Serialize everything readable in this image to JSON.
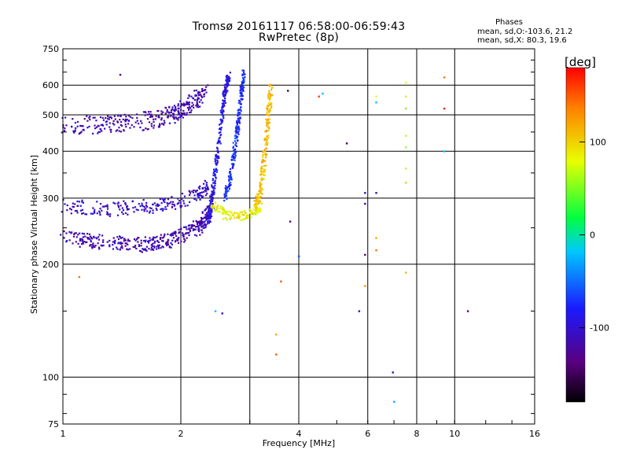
{
  "title_line1": "Tromsø 20161117 06:58:00-06:59:43",
  "title_line2": "RwPretec (8p)",
  "phase_info": {
    "heading": "Phases",
    "line_o": "mean, sd,O:-103.6, 21.2",
    "line_x": "mean, sd,X:  80.3, 19.6"
  },
  "colorbar": {
    "unit": "[deg]",
    "range": [
      -180,
      180
    ],
    "tick_labels": [
      "100",
      "0",
      "-100"
    ],
    "tick_values": [
      100,
      0,
      -100
    ]
  },
  "chart_data": {
    "type": "scatter",
    "xlabel": "Frequency [MHz]",
    "ylabel": "Stationary phase Virtual Height [km]",
    "x_scale": "log",
    "y_scale": "log",
    "xlim": [
      1,
      16
    ],
    "ylim": [
      75,
      750
    ],
    "x_tick_labels": [
      "1",
      "2",
      "4",
      "6",
      "8",
      "10",
      "16"
    ],
    "x_tick_values": [
      1,
      2,
      4,
      6,
      8,
      10,
      16
    ],
    "x_grid_values": [
      1,
      2,
      3,
      4,
      6,
      8,
      10,
      16
    ],
    "y_tick_labels": [
      "75",
      "100",
      "200",
      "300",
      "400",
      "500",
      "600",
      "750"
    ],
    "y_tick_values": [
      75,
      100,
      200,
      300,
      400,
      500,
      600,
      750
    ],
    "grid": true,
    "colorscale": "rainbow (black-purple-blue-cyan-green-yellow-red)",
    "traces": [
      {
        "name_hint": "O upper",
        "x": [
          1.0,
          1.3,
          1.6,
          1.9,
          2.1,
          2.3
        ],
        "y": [
          470,
          470,
          480,
          500,
          530,
          575
        ],
        "phase": -115,
        "spread": 0.05,
        "n": 320
      },
      {
        "name_hint": "O lower",
        "x": [
          1.0,
          1.3,
          1.6,
          1.9,
          2.2,
          2.4
        ],
        "y": [
          235,
          228,
          225,
          232,
          250,
          278
        ],
        "phase": -115,
        "spread": 0.04,
        "n": 380
      },
      {
        "name_hint": "O lower top",
        "x": [
          1.0,
          1.3,
          1.6,
          1.9,
          2.2,
          2.35
        ],
        "y": [
          285,
          280,
          285,
          290,
          305,
          320
        ],
        "phase": -105,
        "spread": 0.04,
        "n": 220
      },
      {
        "name_hint": "O cusp",
        "x": [
          2.35,
          2.42,
          2.5,
          2.58,
          2.65
        ],
        "y": [
          260,
          320,
          420,
          560,
          640
        ],
        "phase": -90,
        "spread": 0.02,
        "n": 260
      },
      {
        "name_hint": "O cusp 2",
        "x": [
          2.6,
          2.7,
          2.78,
          2.85,
          2.9
        ],
        "y": [
          300,
          360,
          450,
          560,
          650
        ],
        "phase": -75,
        "spread": 0.02,
        "n": 220
      },
      {
        "name_hint": "X lower",
        "x": [
          2.4,
          2.6,
          2.8,
          3.0,
          3.2
        ],
        "y": [
          290,
          270,
          268,
          272,
          285
        ],
        "phase": 85,
        "spread": 0.025,
        "n": 140
      },
      {
        "name_hint": "X rise",
        "x": [
          3.1,
          3.2,
          3.28,
          3.35,
          3.4
        ],
        "y": [
          285,
          320,
          400,
          500,
          600
        ],
        "phase": 110,
        "spread": 0.025,
        "n": 200
      }
    ],
    "isolated_points": [
      {
        "x": 1.4,
        "y": 640,
        "phase": -120
      },
      {
        "x": 1.1,
        "y": 185,
        "phase": 140
      },
      {
        "x": 2.45,
        "y": 150,
        "phase": -20
      },
      {
        "x": 2.55,
        "y": 148,
        "phase": -100
      },
      {
        "x": 3.5,
        "y": 130,
        "phase": 120
      },
      {
        "x": 3.5,
        "y": 115,
        "phase": 150
      },
      {
        "x": 3.6,
        "y": 180,
        "phase": 150
      },
      {
        "x": 3.75,
        "y": 580,
        "phase": -150
      },
      {
        "x": 3.8,
        "y": 260,
        "phase": -140
      },
      {
        "x": 4.0,
        "y": 210,
        "phase": -60
      },
      {
        "x": 4.5,
        "y": 560,
        "phase": 160
      },
      {
        "x": 4.6,
        "y": 570,
        "phase": -20
      },
      {
        "x": 5.3,
        "y": 420,
        "phase": -150
      },
      {
        "x": 5.7,
        "y": 150,
        "phase": -100
      },
      {
        "x": 5.9,
        "y": 310,
        "phase": -110
      },
      {
        "x": 5.9,
        "y": 212,
        "phase": -140
      },
      {
        "x": 5.9,
        "y": 175,
        "phase": 130
      },
      {
        "x": 5.9,
        "y": 290,
        "phase": -120
      },
      {
        "x": 6.3,
        "y": 560,
        "phase": 80
      },
      {
        "x": 6.3,
        "y": 540,
        "phase": -20
      },
      {
        "x": 6.3,
        "y": 235,
        "phase": 120
      },
      {
        "x": 6.3,
        "y": 218,
        "phase": 140
      },
      {
        "x": 6.3,
        "y": 310,
        "phase": -110
      },
      {
        "x": 6.95,
        "y": 103,
        "phase": -110
      },
      {
        "x": 7.0,
        "y": 86,
        "phase": -30
      },
      {
        "x": 7.5,
        "y": 610,
        "phase": 80
      },
      {
        "x": 7.5,
        "y": 560,
        "phase": 70
      },
      {
        "x": 7.5,
        "y": 520,
        "phase": 50
      },
      {
        "x": 7.5,
        "y": 440,
        "phase": 90
      },
      {
        "x": 7.5,
        "y": 410,
        "phase": 60
      },
      {
        "x": 7.5,
        "y": 360,
        "phase": 70
      },
      {
        "x": 7.5,
        "y": 330,
        "phase": 100
      },
      {
        "x": 7.5,
        "y": 190,
        "phase": 110
      },
      {
        "x": 9.4,
        "y": 630,
        "phase": 140
      },
      {
        "x": 9.4,
        "y": 520,
        "phase": 170
      },
      {
        "x": 9.4,
        "y": 400,
        "phase": -20
      },
      {
        "x": 10.8,
        "y": 150,
        "phase": -130
      }
    ]
  }
}
